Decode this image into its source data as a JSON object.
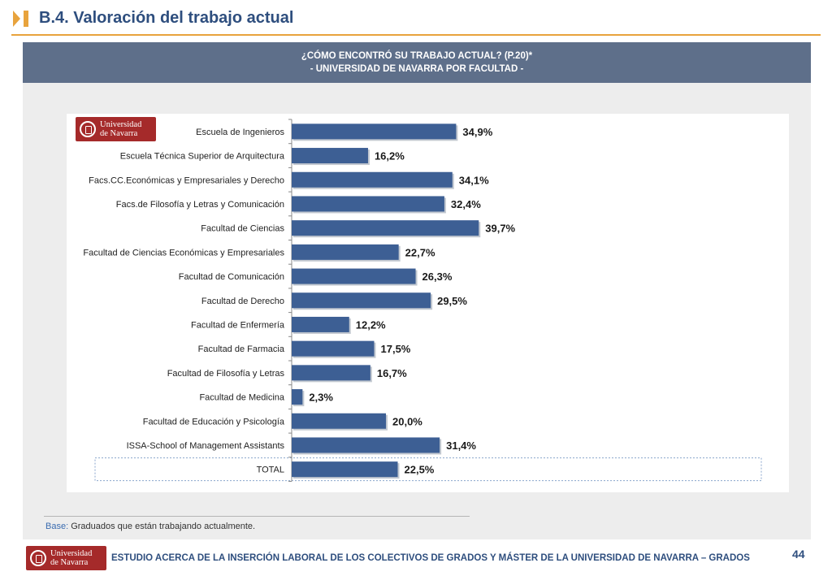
{
  "header": {
    "title": "B.4. Valoración del trabajo actual"
  },
  "banner": {
    "line1": "¿CÓMO ENCONTRÓ SU TRABAJO ACTUAL? (P.20)*",
    "line2": "- UNIVERSIDAD DE NAVARRA POR FACULTAD -"
  },
  "logo": {
    "line1": "Universidad",
    "line2": "de Navarra"
  },
  "chart_data": {
    "type": "bar",
    "orientation": "horizontal",
    "categories": [
      "Escuela de Ingenieros",
      "Escuela Técnica Superior de Arquitectura",
      "Facs.CC.Económicas y Empresariales y Derecho",
      "Facs.de Filosofía y Letras y Comunicación",
      "Facultad de Ciencias",
      "Facultad de Ciencias Económicas y Empresariales",
      "Facultad de Comunicación",
      "Facultad de Derecho",
      "Facultad de Enfermería",
      "Facultad de Farmacia",
      "Facultad de Filosofía y Letras",
      "Facultad de Medicina",
      "Facultad de Educación y Psicología",
      "ISSA-School of Management Assistants",
      "TOTAL"
    ],
    "values": [
      34.9,
      16.2,
      34.1,
      32.4,
      39.7,
      22.7,
      26.3,
      29.5,
      12.2,
      17.5,
      16.7,
      2.3,
      20.0,
      31.4,
      22.5
    ],
    "value_labels": [
      "34,9%",
      "16,2%",
      "34,1%",
      "32,4%",
      "39,7%",
      "22,7%",
      "26,3%",
      "29,5%",
      "12,2%",
      "17,5%",
      "16,7%",
      "2,3%",
      "20,0%",
      "31,4%",
      "22,5%"
    ],
    "xlim": [
      0,
      100
    ],
    "bar_color": "#3d5f94",
    "highlighted_category": "TOTAL",
    "grid": false,
    "legend": "none"
  },
  "base_note": {
    "key": "Base:",
    "text": "Graduados que están trabajando actualmente."
  },
  "footer": {
    "text": "ESTUDIO ACERCA DE LA INSERCIÓN LABORAL DE LOS COLECTIVOS DE GRADOS Y MÁSTER DE LA UNIVERSIDAD DE NAVARRA – GRADOS",
    "page_number": "44"
  }
}
